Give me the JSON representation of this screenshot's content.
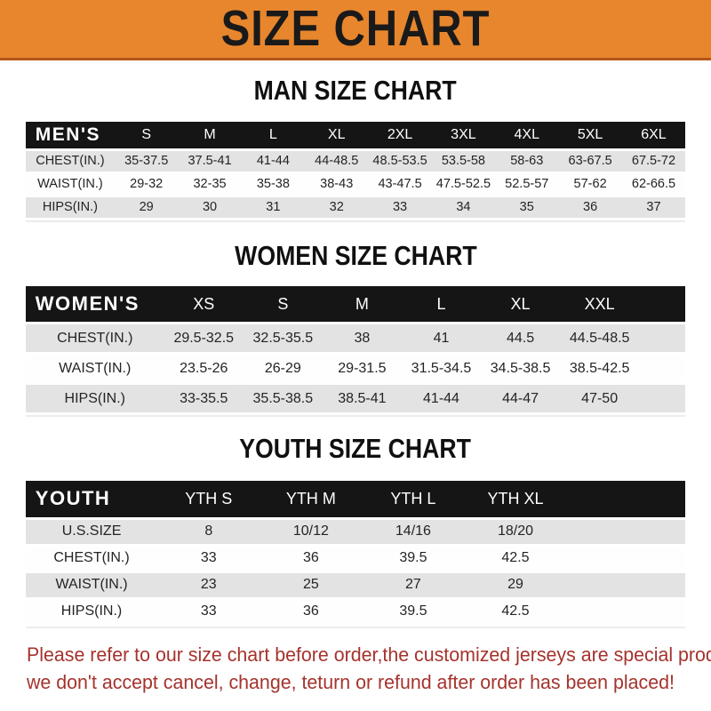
{
  "colors": {
    "banner_bg": "#e8862d",
    "banner_border": "#b35717",
    "header_bg": "#151515",
    "stripe": "#e3e3e3",
    "footer_red": "#a5332d"
  },
  "banner": {
    "title": "SIZE CHART"
  },
  "sections": [
    {
      "heading": "MAN SIZE CHART",
      "table": {
        "label": "MEN'S",
        "columns": [
          "S",
          "M",
          "L",
          "XL",
          "2XL",
          "3XL",
          "4XL",
          "5XL",
          "6XL"
        ],
        "rows": [
          {
            "label": "CHEST(IN.)",
            "values": [
              "35-37.5",
              "37.5-41",
              "41-44",
              "44-48.5",
              "48.5-53.5",
              "53.5-58",
              "58-63",
              "63-67.5",
              "67.5-72"
            ]
          },
          {
            "label": "WAIST(IN.)",
            "values": [
              "29-32",
              "32-35",
              "35-38",
              "38-43",
              "43-47.5",
              "47.5-52.5",
              "52.5-57",
              "57-62",
              "62-66.5"
            ]
          },
          {
            "label": "HIPS(IN.)",
            "values": [
              "29",
              "30",
              "31",
              "32",
              "33",
              "34",
              "35",
              "36",
              "37"
            ]
          }
        ]
      }
    },
    {
      "heading": "WOMEN SIZE CHART",
      "table": {
        "label": "WOMEN'S",
        "columns": [
          "XS",
          "S",
          "M",
          "L",
          "XL",
          "XXL"
        ],
        "rows": [
          {
            "label": "CHEST(IN.)",
            "values": [
              "29.5-32.5",
              "32.5-35.5",
              "38",
              "41",
              "44.5",
              "44.5-48.5"
            ]
          },
          {
            "label": "WAIST(IN.)",
            "values": [
              "23.5-26",
              "26-29",
              "29-31.5",
              "31.5-34.5",
              "34.5-38.5",
              "38.5-42.5"
            ]
          },
          {
            "label": "HIPS(IN.)",
            "values": [
              "33-35.5",
              "35.5-38.5",
              "38.5-41",
              "41-44",
              "44-47",
              "47-50"
            ]
          }
        ]
      }
    },
    {
      "heading": "YOUTH SIZE CHART",
      "table": {
        "label": "YOUTH",
        "columns": [
          "YTH S",
          "YTH M",
          "YTH L",
          "YTH XL"
        ],
        "rows": [
          {
            "label": "U.S.SIZE",
            "values": [
              "8",
              "10/12",
              "14/16",
              "18/20"
            ]
          },
          {
            "label": "CHEST(IN.)",
            "values": [
              "33",
              "36",
              "39.5",
              "42.5"
            ]
          },
          {
            "label": "WAIST(IN.)",
            "values": [
              "23",
              "25",
              "27",
              "29"
            ]
          },
          {
            "label": "HIPS(IN.)",
            "values": [
              "33",
              "36",
              "39.5",
              "42.5"
            ]
          }
        ]
      }
    }
  ],
  "footer": {
    "lines": [
      "Please refer to our size chart before order,the customized jerseys are special products,",
      "we don't accept cancel, change, teturn or refund after order has been placed!"
    ]
  }
}
